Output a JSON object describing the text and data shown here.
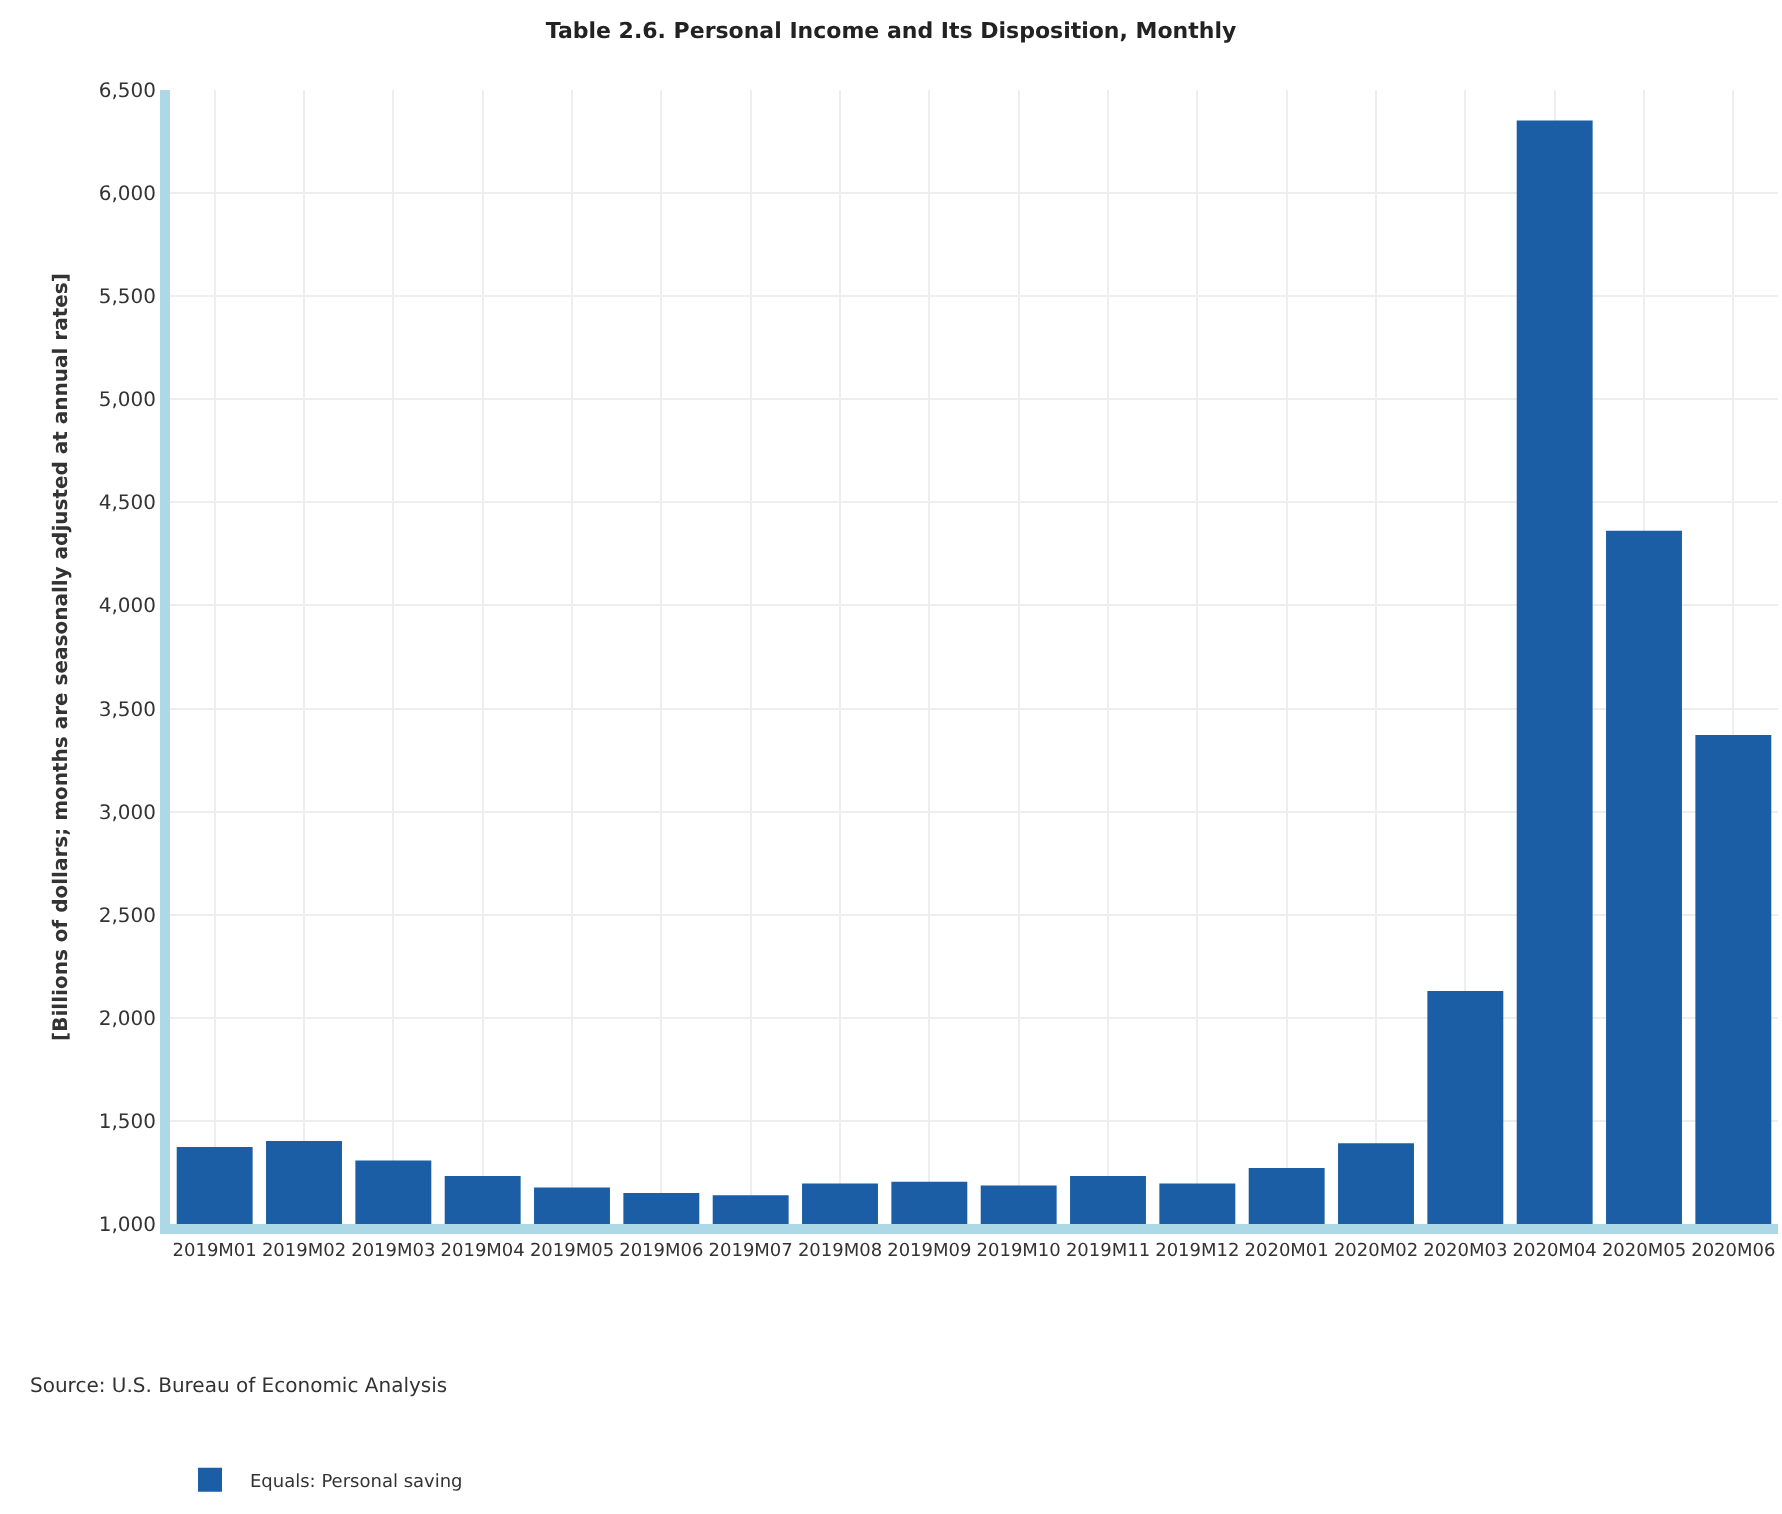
{
  "chart_data": {
    "type": "bar",
    "title": "Table 2.6. Personal Income and Its Disposition, Monthly",
    "ylabel": "[Billions of dollars; months are seasonally adjusted at annual rates]",
    "categories": [
      "2019M01",
      "2019M02",
      "2019M03",
      "2019M04",
      "2019M05",
      "2019M06",
      "2019M07",
      "2019M08",
      "2019M09",
      "2019M10",
      "2019M11",
      "2019M12",
      "2020M01",
      "2020M02",
      "2020M03",
      "2020M04",
      "2020M05",
      "2020M06"
    ],
    "series": [
      {
        "name": "Equals: Personal saving",
        "color": "#1b5ea5",
        "values": [
          1374,
          1402,
          1308,
          1233,
          1177,
          1150,
          1140,
          1196,
          1205,
          1187,
          1233,
          1196,
          1271,
          1392,
          2130,
          6352,
          4362,
          3372
        ]
      }
    ],
    "ylim": [
      1000,
      6500
    ],
    "yticks": [
      {
        "value": 1000,
        "label": "1,000"
      },
      {
        "value": 1500,
        "label": "1,500"
      },
      {
        "value": 2000,
        "label": "2,000"
      },
      {
        "value": 2500,
        "label": "2,500"
      },
      {
        "value": 3000,
        "label": "3,000"
      },
      {
        "value": 3500,
        "label": "3,500"
      },
      {
        "value": 4000,
        "label": "4,000"
      },
      {
        "value": 4500,
        "label": "4,500"
      },
      {
        "value": 5000,
        "label": "5,000"
      },
      {
        "value": 5500,
        "label": "5,500"
      },
      {
        "value": 6000,
        "label": "6,000"
      },
      {
        "value": 6500,
        "label": "6,500"
      }
    ],
    "grid": true,
    "legend": "bottom left",
    "annotations": [
      "Source: U.S. Bureau of Economic Analysis"
    ]
  }
}
